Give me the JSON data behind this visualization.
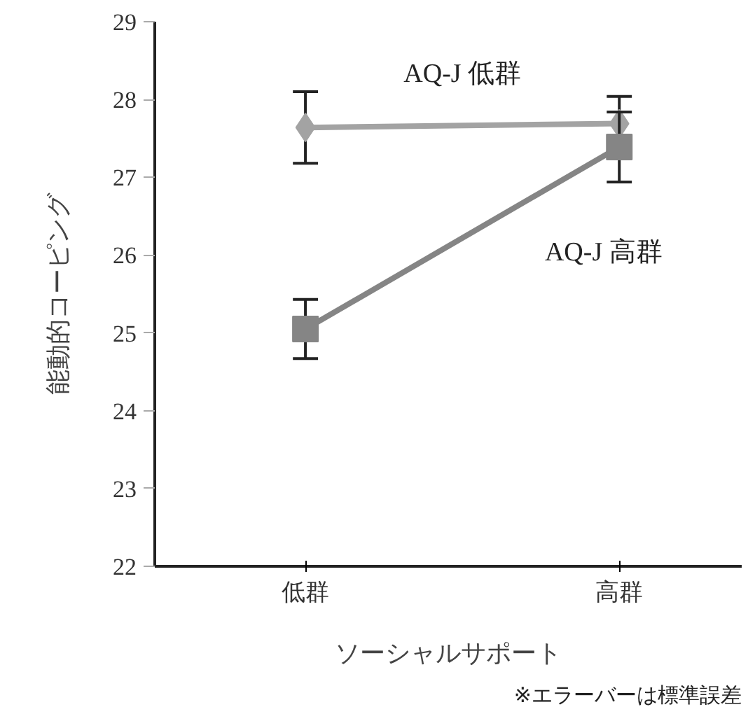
{
  "chart_data": {
    "type": "line",
    "xlabel": "ソーシャルサポート",
    "ylabel": "能動的コーピング",
    "categories": [
      "低群",
      "高群"
    ],
    "series": [
      {
        "name": "AQ-J 低群",
        "color": "#a3a3a3",
        "marker": "diamond",
        "values": [
          27.64,
          27.69
        ],
        "errors": [
          0.46,
          0.35
        ]
      },
      {
        "name": "AQ-J 高群",
        "color": "#858585",
        "marker": "square",
        "values": [
          25.05,
          27.39
        ],
        "errors": [
          0.38,
          0.45
        ]
      }
    ],
    "ylim": [
      22,
      29
    ],
    "yticks": [
      22,
      23,
      24,
      25,
      26,
      27,
      28,
      29
    ],
    "grid": false,
    "annotations": [
      "※エラーバーは標準誤差"
    ]
  }
}
